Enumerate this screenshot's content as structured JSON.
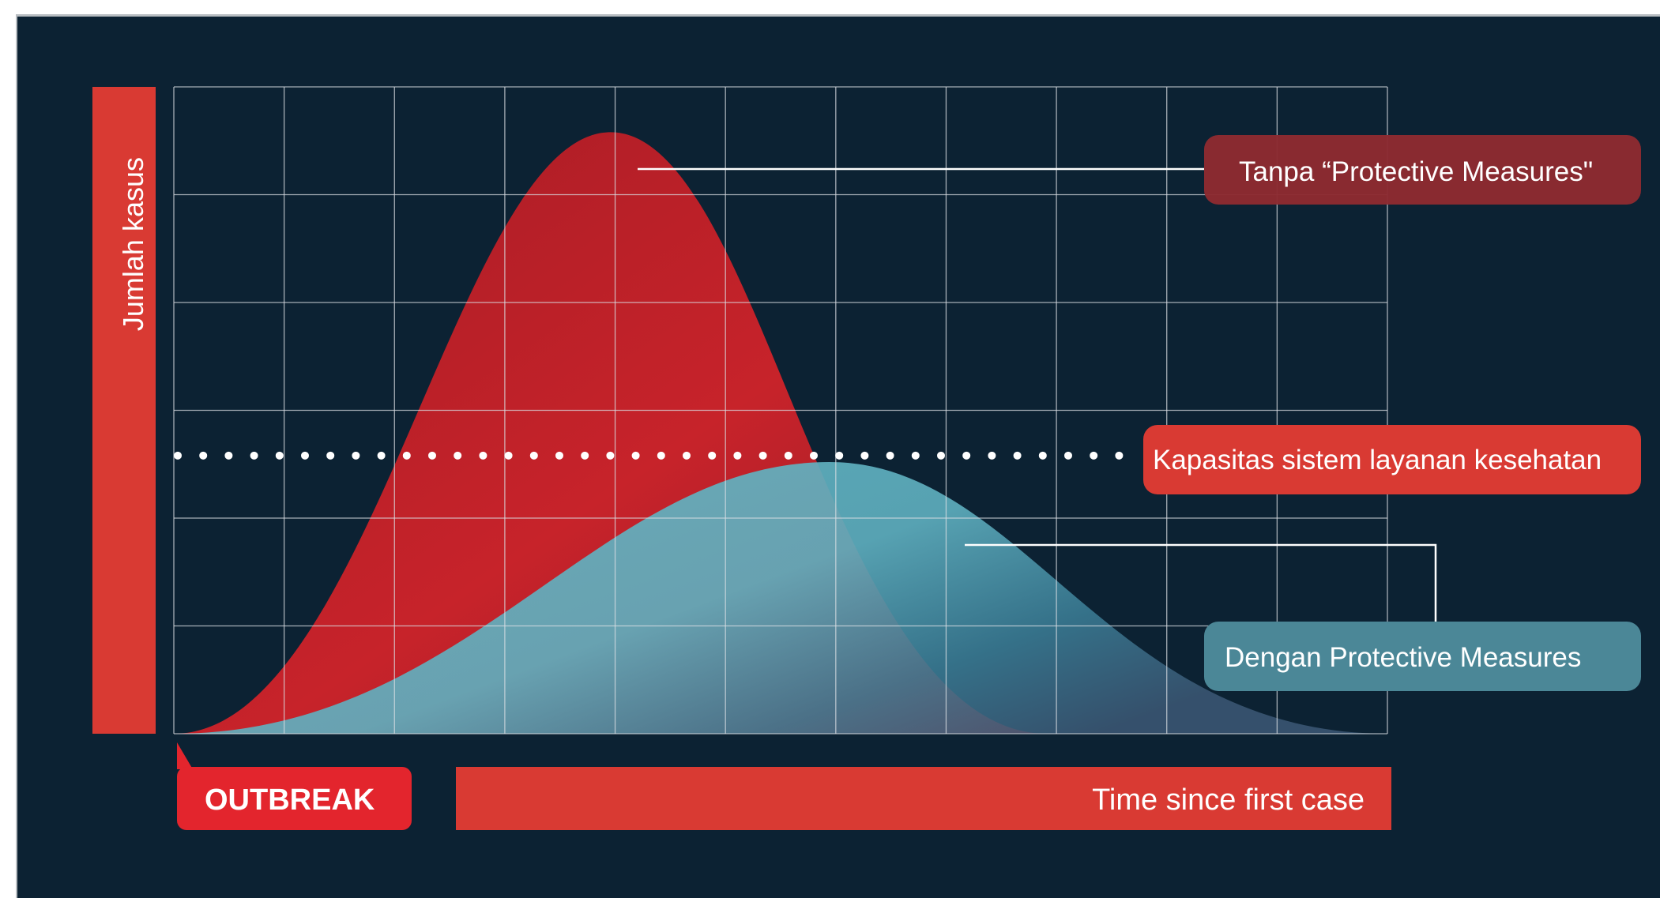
{
  "chart_data": {
    "type": "area",
    "ylabel": "Jumlah kasus",
    "xlabel": "Time since first case",
    "start_marker": "OUTBREAK",
    "capacity_label": "Kapasitas sistem layanan kesehatan",
    "capacity_level": 0.43,
    "series": [
      {
        "name": "Tanpa “Protective Measures\"",
        "peak_x": 0.36,
        "peak_y": 0.93,
        "end_x": 0.72,
        "color": "#b31e26"
      },
      {
        "name": "Dengan Protective Measures",
        "peak_x": 0.54,
        "peak_y": 0.42,
        "end_x": 1.0,
        "color": "#5fb5c4"
      }
    ],
    "grid": true,
    "grid_columns": 11,
    "grid_rows": 6,
    "xlim": [
      0,
      1
    ],
    "ylim": [
      0,
      1
    ]
  },
  "colors": {
    "background": "#0c2233",
    "accent_red": "#d93a33",
    "outbreak_red": "#e3252d",
    "label_dark_red": "#8d2a31",
    "label_teal": "#4b8797",
    "grid": "#d9dee3"
  }
}
